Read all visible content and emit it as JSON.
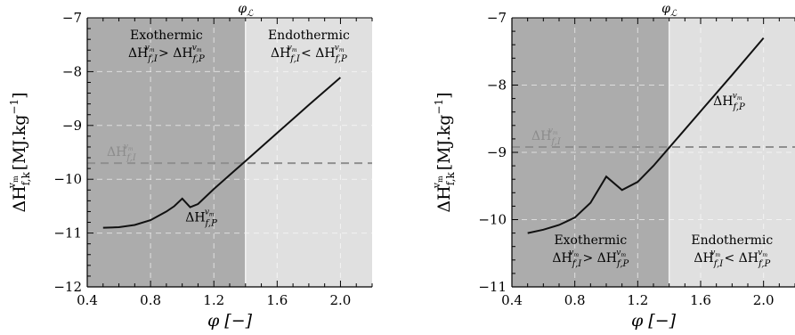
{
  "chart_data": [
    {
      "type": "line",
      "xlabel": "φ [−]",
      "ylabel": "ΔH",
      "ylabel_sub": "f,k",
      "ylabel_sup": "v",
      "ylabel_supsub": "m",
      "ylabel_unit": " [MJ.kg",
      "ylabel_unit_exp": "−1",
      "ylabel_unit_close": "]",
      "top_label": "φ",
      "top_label_sub": "ℒ",
      "xlim": [
        0.4,
        2.2
      ],
      "ylim": [
        -12,
        -7
      ],
      "xticks": [
        "0.4",
        "0.8",
        "1.2",
        "1.6",
        "2.0"
      ],
      "xtick_values": [
        0.4,
        0.8,
        1.2,
        1.6,
        2.0
      ],
      "yticks": [
        "−12",
        "−11",
        "−10",
        "−9",
        "−8",
        "−7"
      ],
      "ytick_values": [
        -12,
        -11,
        -10,
        -9,
        -8,
        -7
      ],
      "phi_L": 1.4,
      "regions": {
        "left": {
          "title": "Exothermic",
          "cond": "ΔH",
          "color": "#acacac",
          "position": "top"
        },
        "right": {
          "title": "Endothermic",
          "cond": "ΔH",
          "color": "#e0e0e0",
          "position": "top"
        }
      },
      "series_P": {
        "label": "ΔH",
        "x": [
          0.5,
          0.6,
          0.7,
          0.8,
          0.9,
          0.95,
          1.0,
          1.05,
          1.1,
          1.2,
          1.3,
          1.4,
          1.6,
          1.8,
          2.0
        ],
        "y": [
          -10.9,
          -10.89,
          -10.85,
          -10.76,
          -10.6,
          -10.5,
          -10.36,
          -10.52,
          -10.46,
          -10.18,
          -9.92,
          -9.66,
          -9.14,
          -8.62,
          -8.11
        ]
      },
      "series_I": {
        "label": "ΔH",
        "value": -9.7,
        "color": "#8f8f8f"
      }
    },
    {
      "type": "line",
      "xlabel": "φ [−]",
      "ylabel": "ΔH",
      "ylabel_sub": "f,k",
      "ylabel_sup": "v",
      "ylabel_supsub": "m",
      "ylabel_unit": " [MJ.kg",
      "ylabel_unit_exp": "−1",
      "ylabel_unit_close": "]",
      "top_label": "φ",
      "top_label_sub": "ℒ",
      "xlim": [
        0.4,
        2.2
      ],
      "ylim": [
        -11,
        -7
      ],
      "xticks": [
        "0.4",
        "0.8",
        "1.2",
        "1.6",
        "2.0"
      ],
      "xtick_values": [
        0.4,
        0.8,
        1.2,
        1.6,
        2.0
      ],
      "yticks": [
        "−11",
        "−10",
        "−9",
        "−8",
        "−7"
      ],
      "ytick_values": [
        -11,
        -10,
        -9,
        -8,
        -7
      ],
      "phi_L": 1.4,
      "regions": {
        "left": {
          "title": "Exothermic",
          "cond": "ΔH",
          "color": "#acacac",
          "position": "bottom"
        },
        "right": {
          "title": "Endothermic",
          "cond": "ΔH",
          "color": "#e0e0e0",
          "position": "bottom"
        }
      },
      "series_P": {
        "label": "ΔH",
        "x": [
          0.5,
          0.6,
          0.7,
          0.8,
          0.9,
          1.0,
          1.1,
          1.2,
          1.3,
          1.4,
          1.6,
          1.8,
          2.0
        ],
        "y": [
          -10.2,
          -10.15,
          -10.08,
          -9.97,
          -9.75,
          -9.36,
          -9.56,
          -9.44,
          -9.2,
          -8.93,
          -8.39,
          -7.85,
          -7.3
        ]
      },
      "series_I": {
        "label": "ΔH",
        "value": -8.92,
        "color": "#8f8f8f"
      }
    }
  ]
}
